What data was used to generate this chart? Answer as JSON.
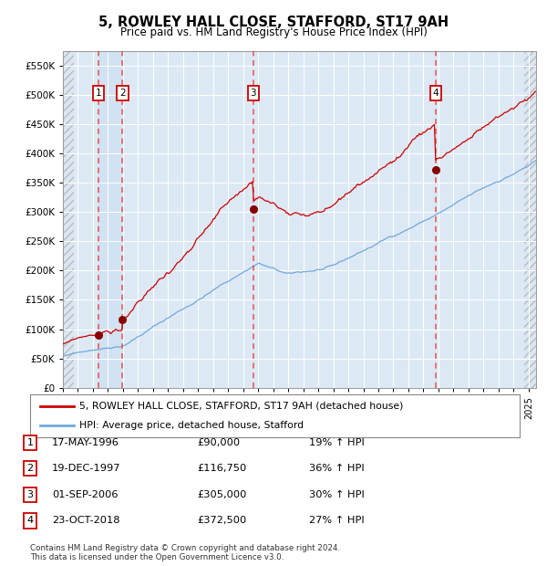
{
  "title": "5, ROWLEY HALL CLOSE, STAFFORD, ST17 9AH",
  "subtitle": "Price paid vs. HM Land Registry's House Price Index (HPI)",
  "title_fontsize": 11,
  "subtitle_fontsize": 9,
  "background_color": "#ffffff",
  "plot_bg_color": "#dce9f5",
  "hatch_bg_color": "#e8eef4",
  "grid_color": "#ffffff",
  "sale_dates_numeric": [
    1996.38,
    1997.97,
    2006.67,
    2018.81
  ],
  "sale_prices": [
    90000,
    116750,
    305000,
    372500
  ],
  "sale_labels": [
    "1",
    "2",
    "3",
    "4"
  ],
  "sale_pct": [
    "19%",
    "36%",
    "30%",
    "27%"
  ],
  "sale_date_strs": [
    "17-MAY-1996",
    "19-DEC-1997",
    "01-SEP-2006",
    "23-OCT-2018"
  ],
  "sale_price_strs": [
    "£90,000",
    "£116,750",
    "£305,000",
    "£372,500"
  ],
  "hpi_line_color": "#6fa8dc",
  "price_line_color": "#cc0000",
  "marker_color": "#880000",
  "dashed_color": "#ee3333",
  "xmin": 1994.0,
  "xmax": 2025.5,
  "ymin": 0,
  "ymax": 575000,
  "yticks": [
    0,
    50000,
    100000,
    150000,
    200000,
    250000,
    300000,
    350000,
    400000,
    450000,
    500000,
    550000
  ],
  "ytick_labels": [
    "£0",
    "£50K",
    "£100K",
    "£150K",
    "£200K",
    "£250K",
    "£300K",
    "£350K",
    "£400K",
    "£450K",
    "£500K",
    "£550K"
  ],
  "footer_text": "Contains HM Land Registry data © Crown copyright and database right 2024.\nThis data is licensed under the Open Government Licence v3.0.",
  "legend_line1": "5, ROWLEY HALL CLOSE, STAFFORD, ST17 9AH (detached house)",
  "legend_line2": "HPI: Average price, detached house, Stafford"
}
